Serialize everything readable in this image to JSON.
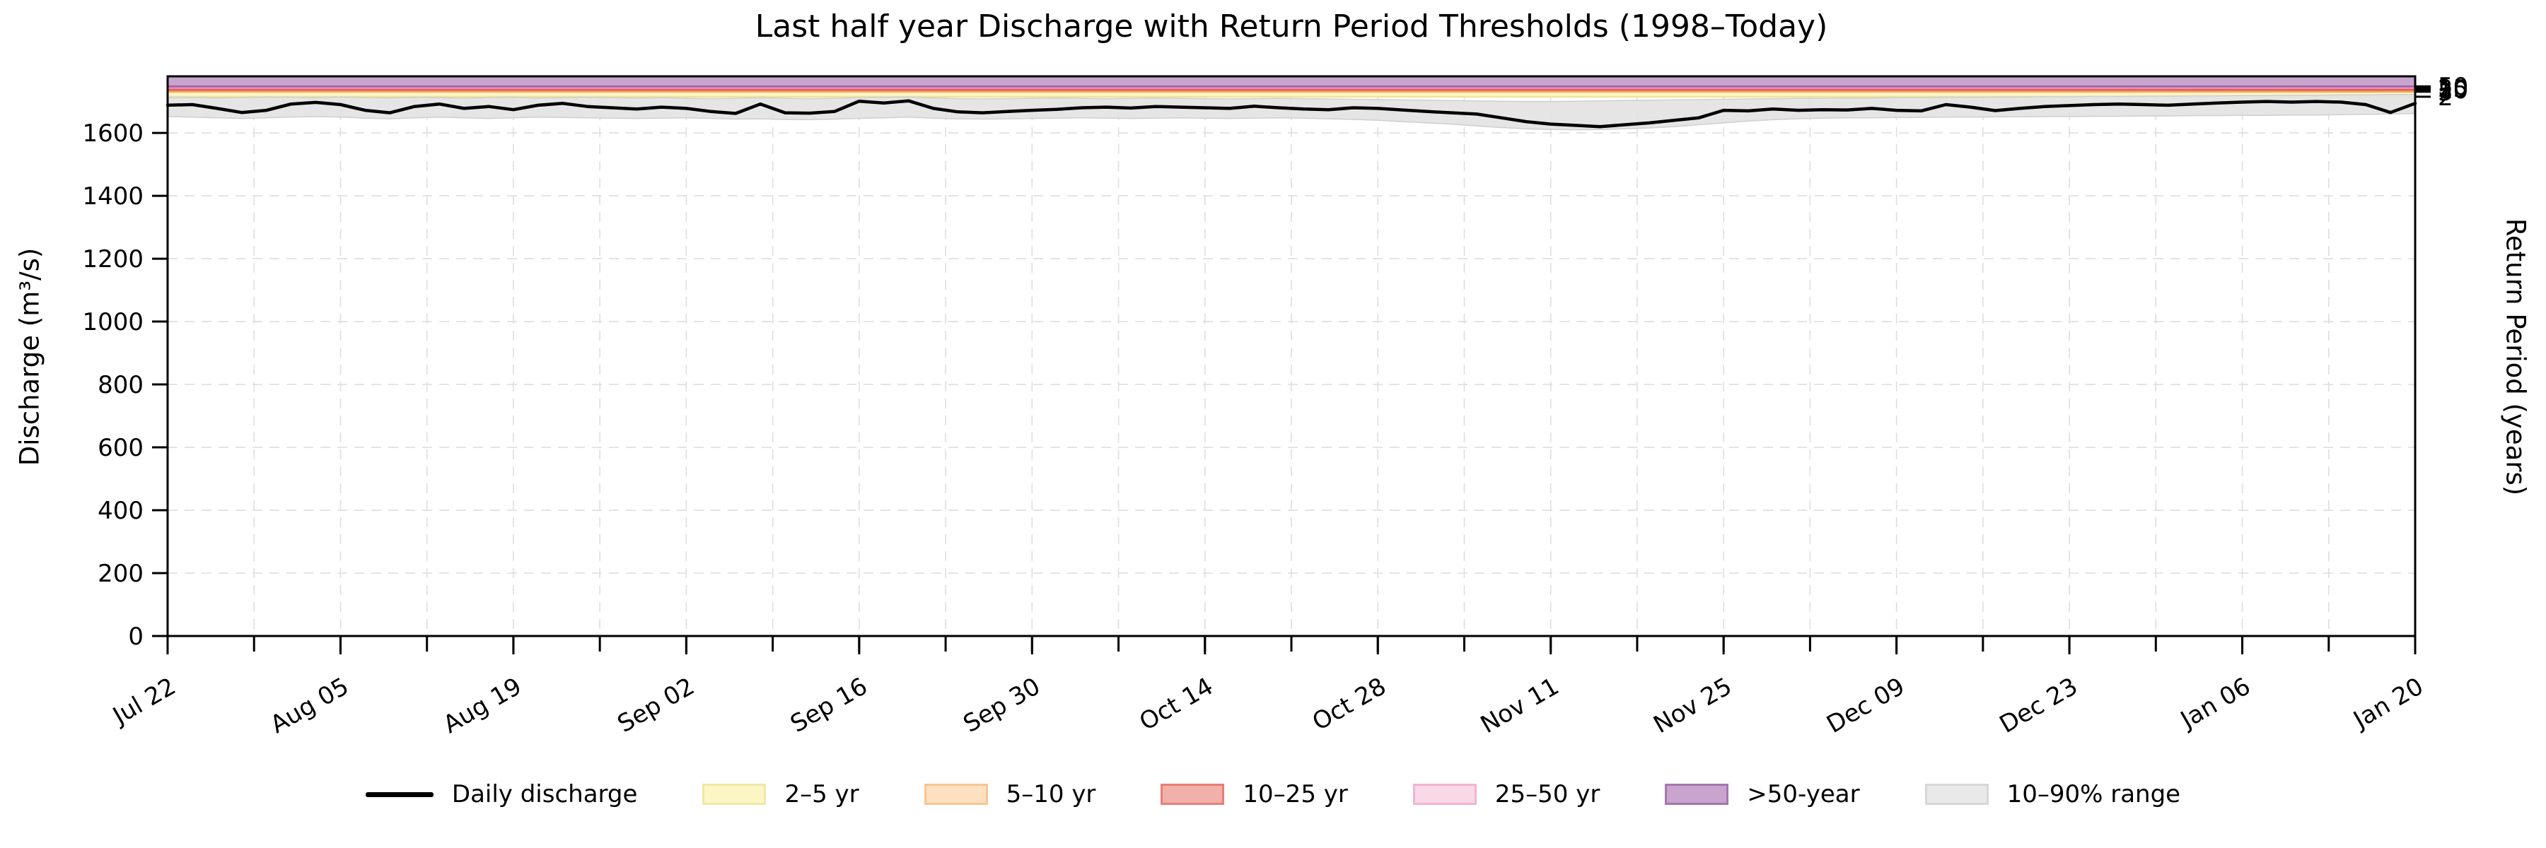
{
  "title": "Last half year Discharge with Return Period Thresholds (1998–Today)",
  "axes": {
    "y_left": {
      "label": "Discharge (m³/s)",
      "ticks": [
        0,
        200,
        400,
        600,
        800,
        1000,
        1200,
        1400,
        1600
      ]
    },
    "y_right": {
      "label": "Return Period (years)",
      "ticks": [
        {
          "label": "2",
          "value": 1715
        },
        {
          "label": "5",
          "value": 1731
        },
        {
          "label": "10",
          "value": 1737
        },
        {
          "label": "25",
          "value": 1742
        },
        {
          "label": "50",
          "value": 1748
        }
      ]
    },
    "x": {
      "ticks": [
        {
          "label": "Jul 22",
          "day": 0
        },
        {
          "label": "Aug 05",
          "day": 14
        },
        {
          "label": "Aug 19",
          "day": 28
        },
        {
          "label": "Sep 02",
          "day": 42
        },
        {
          "label": "Sep 16",
          "day": 56
        },
        {
          "label": "Sep 30",
          "day": 70
        },
        {
          "label": "Oct 14",
          "day": 84
        },
        {
          "label": "Oct 28",
          "day": 98
        },
        {
          "label": "Nov 11",
          "day": 112
        },
        {
          "label": "Nov 25",
          "day": 126
        },
        {
          "label": "Dec 09",
          "day": 140
        },
        {
          "label": "Dec 23",
          "day": 154
        },
        {
          "label": "Jan 06",
          "day": 168
        },
        {
          "label": "Jan 20",
          "day": 182
        }
      ],
      "minor_tick_days": 7
    }
  },
  "legend": [
    {
      "label": "Daily discharge",
      "type": "line",
      "fill": "#000000",
      "edge": "#000000"
    },
    {
      "label": "2–5 yr",
      "type": "patch",
      "fill": "#fcf6c5",
      "edge": "#f0e8a6"
    },
    {
      "label": "5–10 yr",
      "type": "patch",
      "fill": "#fde0bf",
      "edge": "#fac48e"
    },
    {
      "label": "10–25 yr",
      "type": "patch",
      "fill": "#f1b0aa",
      "edge": "#e87e75"
    },
    {
      "label": "25–50 yr",
      "type": "patch",
      "fill": "#f9d8e8",
      "edge": "#f2b4d2"
    },
    {
      "label": ">50-year",
      "type": "patch",
      "fill": "#c8a4ce",
      "edge": "#a478ae"
    },
    {
      "label": "10–90% range",
      "type": "patch",
      "fill": "#e9e9e9",
      "edge": "#d7d7d7"
    }
  ],
  "colors": {
    "line": "#000000",
    "grid": "#dedede",
    "spine": "#000000",
    "range_fill": "rgba(226,226,226,0.9)",
    "range_edge": "#cfcfcf"
  },
  "chart_data": {
    "type": "line",
    "title": "Last half year Discharge with Return Period Thresholds (1998–Today)",
    "xlabel": "",
    "ylabel": "Discharge (m³/s)",
    "ylabel_right": "Return Period (years)",
    "ylim": [
      0,
      1780
    ],
    "x_day_start": 0,
    "x_day_end": 182,
    "x_day_step": 2,
    "grid": "dashed",
    "legend_position": "bottom-center",
    "thresholds_m3s": {
      "2yr": 1715,
      "5yr": 1731,
      "10yr": 1737,
      "25yr": 1742,
      "50yr": 1748
    },
    "threshold_bands": [
      {
        "name": "2–5 yr",
        "from": 1715,
        "to": 1731,
        "fill": "#fcf6c5",
        "edge": "#eee39b"
      },
      {
        "name": "5–10 yr",
        "from": 1731,
        "to": 1737,
        "fill": "#fbd3a2",
        "edge": "#f6a55c"
      },
      {
        "name": "10–25 yr",
        "from": 1737,
        "to": 1742,
        "fill": "#ee8a80",
        "edge": "#dd5a50"
      },
      {
        "name": "25–50 yr",
        "from": 1742,
        "to": 1748,
        "fill": "#f5c3da",
        "edge": "#e98eb8"
      },
      {
        "name": ">50-year",
        "from": 1748,
        "to": 1780,
        "fill": "#c8a4ce",
        "edge": "#9b61a6"
      }
    ],
    "series": [
      {
        "name": "Daily discharge",
        "values": [
          1688,
          1690,
          1678,
          1665,
          1672,
          1692,
          1697,
          1690,
          1672,
          1664,
          1684,
          1692,
          1678,
          1684,
          1674,
          1688,
          1694,
          1684,
          1680,
          1676,
          1682,
          1678,
          1668,
          1662,
          1692,
          1664,
          1663,
          1668,
          1701,
          1695,
          1702,
          1678,
          1667,
          1664,
          1668,
          1672,
          1675,
          1680,
          1682,
          1679,
          1684,
          1682,
          1680,
          1678,
          1685,
          1680,
          1676,
          1674,
          1680,
          1678,
          1673,
          1668,
          1664,
          1660,
          1648,
          1636,
          1628,
          1624,
          1620,
          1626,
          1632,
          1640,
          1648,
          1672,
          1670,
          1676,
          1672,
          1674,
          1673,
          1678,
          1672,
          1670,
          1690,
          1682,
          1671,
          1678,
          1684,
          1687,
          1690,
          1692,
          1690,
          1688,
          1692,
          1695,
          1698,
          1700,
          1698,
          1700,
          1698,
          1690,
          1665,
          1694
        ]
      },
      {
        "name": "90th percentile (top of 10–90% range)",
        "values": [
          1712,
          1713,
          1711,
          1712,
          1714,
          1713,
          1712,
          1714,
          1712,
          1711,
          1713,
          1712,
          1710,
          1712,
          1713,
          1711,
          1712,
          1713,
          1712,
          1711,
          1712,
          1710,
          1709,
          1710,
          1712,
          1710,
          1709,
          1710,
          1712,
          1713,
          1714,
          1711,
          1709,
          1708,
          1709,
          1710,
          1711,
          1710,
          1709,
          1710,
          1711,
          1710,
          1709,
          1708,
          1709,
          1710,
          1709,
          1708,
          1707,
          1706,
          1705,
          1704,
          1703,
          1702,
          1701,
          1700,
          1700,
          1701,
          1702,
          1703,
          1704,
          1705,
          1706,
          1707,
          1708,
          1709,
          1710,
          1710,
          1711,
          1711,
          1712,
          1712,
          1713,
          1713,
          1714,
          1714,
          1715,
          1715,
          1716,
          1716,
          1717,
          1717,
          1718,
          1718,
          1719,
          1719,
          1720,
          1720,
          1721,
          1721,
          1722,
          1722
        ]
      },
      {
        "name": "10th percentile (bottom of 10–90% range)",
        "values": [
          1652,
          1650,
          1648,
          1646,
          1648,
          1650,
          1652,
          1650,
          1647,
          1645,
          1648,
          1650,
          1648,
          1646,
          1648,
          1650,
          1649,
          1648,
          1647,
          1646,
          1647,
          1648,
          1646,
          1644,
          1645,
          1643,
          1642,
          1644,
          1646,
          1648,
          1650,
          1647,
          1645,
          1644,
          1645,
          1646,
          1647,
          1648,
          1647,
          1646,
          1647,
          1648,
          1647,
          1646,
          1647,
          1648,
          1647,
          1645,
          1643,
          1640,
          1636,
          1632,
          1628,
          1622,
          1617,
          1613,
          1611,
          1610,
          1611,
          1613,
          1616,
          1620,
          1626,
          1632,
          1638,
          1642,
          1645,
          1647,
          1648,
          1648,
          1649,
          1649,
          1650,
          1650,
          1651,
          1651,
          1652,
          1652,
          1653,
          1653,
          1654,
          1654,
          1655,
          1655,
          1656,
          1656,
          1657,
          1657,
          1658,
          1659,
          1660,
          1662
        ]
      }
    ]
  }
}
